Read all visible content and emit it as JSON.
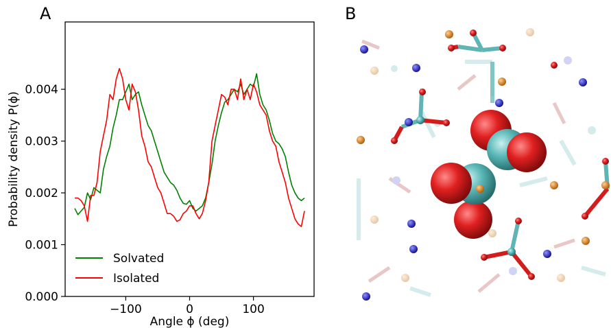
{
  "panels": {
    "a_label": "A",
    "b_label": "B"
  },
  "chart_data": {
    "type": "line",
    "title": "",
    "xlabel": "Angle ϕ (deg)",
    "ylabel": "Probability density P(ϕ)",
    "xlim": [
      -195,
      195
    ],
    "ylim": [
      0.0,
      0.0053
    ],
    "xticks": [
      -100,
      0,
      100
    ],
    "xtick_labels": [
      "−100",
      "0",
      "100"
    ],
    "yticks": [
      0.0,
      0.001,
      0.002,
      0.003,
      0.004
    ],
    "ytick_labels": [
      "0.000",
      "0.001",
      "0.002",
      "0.003",
      "0.004"
    ],
    "grid": false,
    "legend_position": "lower-left",
    "series": [
      {
        "name": "Solvated",
        "color": "#008000",
        "x": [
          -180,
          -175,
          -170,
          -165,
          -160,
          -155,
          -150,
          -145,
          -140,
          -135,
          -130,
          -125,
          -120,
          -115,
          -110,
          -105,
          -100,
          -95,
          -90,
          -85,
          -80,
          -75,
          -70,
          -65,
          -60,
          -55,
          -50,
          -45,
          -40,
          -35,
          -30,
          -25,
          -20,
          -15,
          -10,
          -5,
          0,
          5,
          10,
          15,
          20,
          25,
          30,
          35,
          40,
          45,
          50,
          55,
          60,
          65,
          70,
          75,
          80,
          85,
          90,
          95,
          100,
          105,
          110,
          115,
          120,
          125,
          130,
          135,
          140,
          145,
          150,
          155,
          160,
          165,
          170,
          175,
          180
        ],
        "y": [
          0.0017,
          0.00158,
          0.00165,
          0.00172,
          0.002,
          0.00187,
          0.0021,
          0.00205,
          0.002,
          0.00245,
          0.0027,
          0.0029,
          0.00325,
          0.0035,
          0.0038,
          0.0038,
          0.00395,
          0.0041,
          0.0038,
          0.0039,
          0.00395,
          0.0037,
          0.0035,
          0.0033,
          0.0032,
          0.003,
          0.0028,
          0.0026,
          0.0024,
          0.0023,
          0.0022,
          0.00215,
          0.00205,
          0.0019,
          0.0018,
          0.00178,
          0.00185,
          0.0017,
          0.00165,
          0.0017,
          0.00175,
          0.0019,
          0.0022,
          0.00255,
          0.003,
          0.0033,
          0.00355,
          0.00375,
          0.0038,
          0.0039,
          0.004,
          0.00395,
          0.0041,
          0.0039,
          0.004,
          0.0041,
          0.00405,
          0.0043,
          0.0039,
          0.0037,
          0.0036,
          0.0034,
          0.00315,
          0.003,
          0.00295,
          0.00285,
          0.0027,
          0.0024,
          0.00215,
          0.002,
          0.0019,
          0.00185,
          0.0019
        ]
      },
      {
        "name": "Isolated",
        "color": "#ff0000",
        "x": [
          -180,
          -175,
          -170,
          -165,
          -160,
          -155,
          -150,
          -145,
          -140,
          -135,
          -130,
          -125,
          -120,
          -115,
          -110,
          -105,
          -100,
          -95,
          -90,
          -85,
          -80,
          -75,
          -70,
          -65,
          -60,
          -55,
          -50,
          -45,
          -40,
          -35,
          -30,
          -25,
          -20,
          -15,
          -10,
          -5,
          0,
          5,
          10,
          15,
          20,
          25,
          30,
          35,
          40,
          45,
          50,
          55,
          60,
          65,
          70,
          75,
          80,
          85,
          90,
          95,
          100,
          105,
          110,
          115,
          120,
          125,
          130,
          135,
          140,
          145,
          150,
          155,
          160,
          165,
          170,
          175,
          180
        ],
        "y": [
          0.0019,
          0.0019,
          0.00185,
          0.00175,
          0.00145,
          0.00195,
          0.00195,
          0.0022,
          0.0028,
          0.0031,
          0.0034,
          0.0039,
          0.0038,
          0.0042,
          0.0044,
          0.0042,
          0.0038,
          0.0036,
          0.0041,
          0.00395,
          0.0036,
          0.0031,
          0.0029,
          0.0026,
          0.0025,
          0.0023,
          0.0021,
          0.002,
          0.0018,
          0.0016,
          0.0016,
          0.00155,
          0.00145,
          0.00148,
          0.0016,
          0.00165,
          0.00175,
          0.00175,
          0.0016,
          0.0015,
          0.0016,
          0.00185,
          0.0022,
          0.003,
          0.0033,
          0.0036,
          0.0039,
          0.00385,
          0.0037,
          0.004,
          0.004,
          0.0038,
          0.0042,
          0.0038,
          0.004,
          0.0038,
          0.0041,
          0.00395,
          0.0037,
          0.0036,
          0.0035,
          0.0032,
          0.003,
          0.0029,
          0.0026,
          0.0024,
          0.0022,
          0.0019,
          0.0017,
          0.0015,
          0.0014,
          0.00135,
          0.00165
        ]
      }
    ]
  },
  "molecular_view": {
    "colors": {
      "carbon": "#5fb5b5",
      "oxygen": "#d41c1c",
      "nitrogen": "#2020c8",
      "phosphorus": "#e07a10"
    }
  }
}
